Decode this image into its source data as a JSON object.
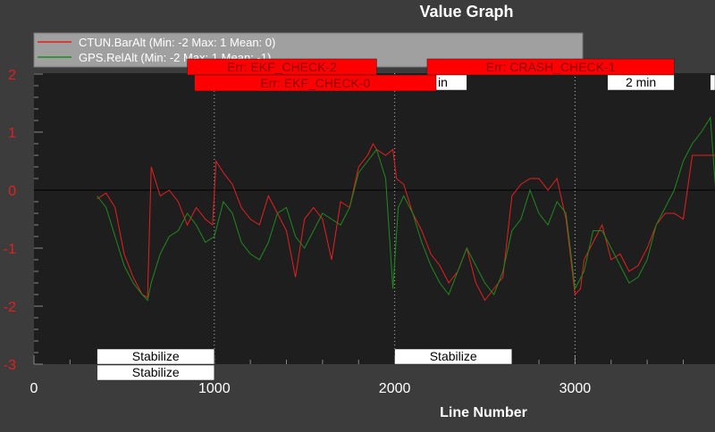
{
  "chart_data": {
    "type": "line",
    "title": "Value Graph",
    "xlabel": "Line Number",
    "ylabel": "",
    "xlim": [
      0,
      3800
    ],
    "ylim": [
      -3,
      2
    ],
    "xticks": [
      0,
      1000,
      2000,
      3000
    ],
    "yticks": [
      2,
      1,
      0,
      -1,
      -2,
      -3
    ],
    "vertical_markers": [
      1000,
      2000,
      3000
    ],
    "legend": {
      "placement": "top-left",
      "entries": [
        "CTUN.BarAlt (Min: -2 Max: 1 Mean: 0)",
        "GPS.RelAlt (Min: -2 Max: 1 Mean: -1)"
      ]
    },
    "series": [
      {
        "name": "CTUN.BarAlt",
        "color": "#e81e1e",
        "x": [
          350,
          400,
          450,
          500,
          550,
          600,
          630,
          650,
          680,
          700,
          750,
          800,
          850,
          900,
          950,
          990,
          1010,
          1050,
          1100,
          1150,
          1200,
          1250,
          1300,
          1350,
          1400,
          1450,
          1500,
          1550,
          1600,
          1650,
          1700,
          1750,
          1800,
          1850,
          1880,
          1900,
          1950,
          1990,
          2010,
          2050,
          2100,
          2150,
          2200,
          2250,
          2300,
          2350,
          2400,
          2450,
          2500,
          2550,
          2600,
          2650,
          2700,
          2750,
          2800,
          2850,
          2900,
          2950,
          3000,
          3030,
          3050,
          3100,
          3150,
          3200,
          3250,
          3300,
          3350,
          3400,
          3450,
          3500,
          3550,
          3600,
          3650,
          3700,
          3750,
          3780
        ],
        "y": [
          -0.15,
          -0.05,
          -0.3,
          -1.1,
          -1.5,
          -1.8,
          -1.85,
          0.4,
          0.1,
          -0.1,
          0.0,
          -0.2,
          -0.6,
          -0.3,
          -0.5,
          -0.6,
          0.5,
          0.3,
          0.1,
          -0.3,
          -0.5,
          -0.6,
          -0.1,
          -0.4,
          -0.7,
          -1.5,
          -0.5,
          -0.3,
          -0.5,
          -1.2,
          -0.2,
          -0.3,
          0.4,
          0.6,
          0.8,
          0.7,
          0.6,
          0.7,
          0.2,
          0.1,
          -0.4,
          -0.7,
          -1.1,
          -1.3,
          -1.6,
          -1.4,
          -1.0,
          -1.6,
          -1.9,
          -1.7,
          -1.5,
          -0.1,
          0.1,
          0.2,
          0.2,
          0.0,
          0.2,
          -0.5,
          -1.8,
          -1.7,
          -1.2,
          -0.9,
          -0.6,
          -1.2,
          -1.1,
          -1.4,
          -1.3,
          -1.0,
          -0.6,
          -0.4,
          -0.4,
          -0.5,
          0.6,
          0.6,
          0.6,
          0.6
        ]
      },
      {
        "name": "GPS.RelAlt",
        "color": "#1e8a1e",
        "x": [
          350,
          400,
          450,
          500,
          550,
          600,
          630,
          650,
          700,
          750,
          800,
          850,
          900,
          950,
          1000,
          1050,
          1100,
          1150,
          1200,
          1250,
          1300,
          1350,
          1400,
          1450,
          1500,
          1550,
          1600,
          1650,
          1700,
          1750,
          1800,
          1850,
          1900,
          1950,
          1990,
          2020,
          2050,
          2100,
          2150,
          2200,
          2250,
          2300,
          2350,
          2400,
          2450,
          2500,
          2550,
          2600,
          2650,
          2700,
          2750,
          2800,
          2850,
          2900,
          2950,
          3000,
          3050,
          3100,
          3150,
          3200,
          3250,
          3300,
          3350,
          3400,
          3450,
          3500,
          3550,
          3600,
          3650,
          3700,
          3750,
          3780
        ],
        "y": [
          -0.1,
          -0.3,
          -0.8,
          -1.3,
          -1.6,
          -1.8,
          -1.9,
          -1.6,
          -1.1,
          -0.8,
          -0.7,
          -0.4,
          -0.6,
          -0.9,
          -0.8,
          -0.2,
          -0.4,
          -0.9,
          -1.1,
          -1.2,
          -0.9,
          -0.4,
          -0.3,
          -0.8,
          -1.0,
          -0.7,
          -0.4,
          -0.5,
          -0.6,
          -0.3,
          0.3,
          0.5,
          0.7,
          0.2,
          -1.7,
          -0.3,
          -0.1,
          -0.4,
          -0.9,
          -1.3,
          -1.6,
          -1.8,
          -1.4,
          -1.0,
          -1.3,
          -1.6,
          -1.8,
          -1.4,
          -0.7,
          -0.5,
          0.0,
          -0.4,
          -0.6,
          -0.2,
          -0.4,
          -1.7,
          -1.4,
          -0.7,
          -0.7,
          -1.0,
          -1.3,
          -1.6,
          -1.5,
          -1.2,
          -0.6,
          -0.3,
          0.0,
          0.5,
          0.8,
          1.0,
          1.25,
          0.0
        ]
      }
    ],
    "annotations": [
      {
        "text": "Err: EKF_CHECK-2",
        "kind": "error",
        "x_start": 850,
        "x_end": 1900,
        "row": 0
      },
      {
        "text": "Err: CRASH_CHECK-1",
        "kind": "error",
        "x_start": 2180,
        "x_end": 3550,
        "row": 0
      },
      {
        "text": "Err: EKF_CHECK-0",
        "kind": "error",
        "x_start": 890,
        "x_end": 2230,
        "row": 1
      },
      {
        "text": "in",
        "kind": "time",
        "x_start": 2230,
        "x_end": 2400,
        "row": 1
      },
      {
        "text": "2 min",
        "kind": "time",
        "x_start": 3180,
        "x_end": 3550,
        "row": 1
      },
      {
        "text": "",
        "kind": "time",
        "x_start": 3750,
        "x_end": 3800,
        "row": 1
      },
      {
        "text": "Stabilize",
        "kind": "mode",
        "x_start": 350,
        "x_end": 1000,
        "row": 0
      },
      {
        "text": "Stabilize",
        "kind": "mode",
        "x_start": 2000,
        "x_end": 2650,
        "row": 0
      },
      {
        "text": "Stabilize",
        "kind": "mode",
        "x_start": 350,
        "x_end": 1000,
        "row": 1
      }
    ]
  }
}
